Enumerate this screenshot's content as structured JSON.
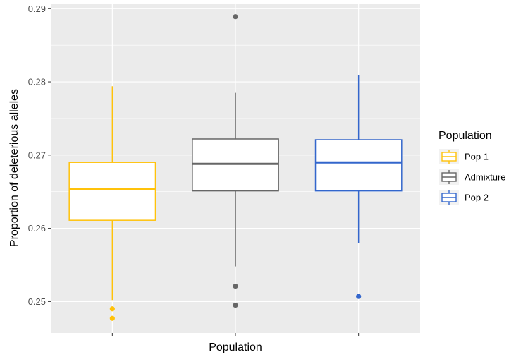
{
  "chart_data": {
    "type": "boxplot",
    "title": "",
    "xlabel": "Population",
    "ylabel": "Proportion of deleterious alleles",
    "ylim": [
      0.2457,
      0.2907
    ],
    "yticks": [
      0.25,
      0.26,
      0.27,
      0.28,
      0.29
    ],
    "ytick_labels": [
      "0.25",
      "0.26",
      "0.27",
      "0.28",
      "0.29"
    ],
    "grid": true,
    "legend": {
      "title": "Population",
      "position": "right",
      "entries": [
        "Pop 1",
        "Admixture",
        "Pop 2"
      ]
    },
    "series": [
      {
        "name": "Pop 1",
        "color": "#FFC20A",
        "whisker_low": 0.2502,
        "q1": 0.2611,
        "median": 0.2654,
        "q3": 0.269,
        "whisker_high": 0.2794,
        "outliers": [
          0.249,
          0.2477
        ]
      },
      {
        "name": "Admixture",
        "color": "#666666",
        "whisker_low": 0.2548,
        "q1": 0.2651,
        "median": 0.2688,
        "q3": 0.2722,
        "whisker_high": 0.2785,
        "outliers": [
          0.2889,
          0.2521,
          0.2495
        ]
      },
      {
        "name": "Pop 2",
        "color": "#3366CC",
        "whisker_low": 0.258,
        "q1": 0.2651,
        "median": 0.269,
        "q3": 0.2721,
        "whisker_high": 0.2809,
        "outliers": [
          0.2507
        ]
      }
    ]
  }
}
